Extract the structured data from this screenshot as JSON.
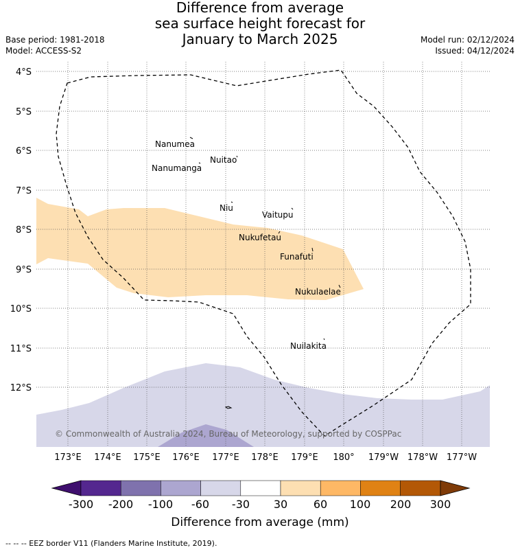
{
  "title": {
    "line1": "Difference from average",
    "line2": "sea surface height forecast for",
    "line3": "January to March 2025"
  },
  "meta": {
    "base_period": "Base period: 1981-2018",
    "model": "Model: ACCESS-S2",
    "model_run": "Model run: 02/12/2024",
    "issued": "Issued: 04/12/2024"
  },
  "lat_labels": [
    "4°S",
    "5°S",
    "6°S",
    "7°S",
    "8°S",
    "9°S",
    "10°S",
    "11°S",
    "12°S"
  ],
  "lon_labels": [
    "173°E",
    "174°E",
    "175°E",
    "176°E",
    "177°E",
    "178°E",
    "179°E",
    "180°",
    "179°W",
    "178°W",
    "177°W"
  ],
  "islands": [
    "Nanumea",
    "Nuitao",
    "Nanumanga",
    "Niu",
    "Vaitupu",
    "Nukufetau",
    "Funafuti",
    "Nukulaelae",
    "Nuilakita"
  ],
  "copyright": "© Commonwealth of Australia 2024, Bureau of Meteorology, supported by COSPPac",
  "colorbar": {
    "ticks": [
      "-300",
      "-200",
      "-100",
      "-60",
      "-30",
      "30",
      "60",
      "100",
      "200",
      "300"
    ],
    "colors": [
      "#3f0f6e",
      "#54278f",
      "#7f72ad",
      "#aca6d0",
      "#d7d7e9",
      "#ffffff",
      "#fddfb2",
      "#feb865",
      "#e08214",
      "#b35806",
      "#7f3b08"
    ],
    "title": "Difference from average (mm)"
  },
  "footer": "--  --  -- EEZ border V11 (Flanders Marine Institute, 2019)."
}
